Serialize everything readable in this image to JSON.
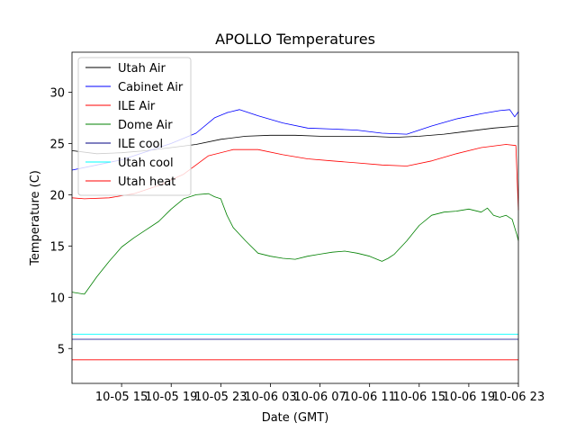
{
  "chart_data": {
    "type": "line",
    "title": "APOLLO Temperatures",
    "xlabel": "Date (GMT)",
    "ylabel": "Temperature (C)",
    "x_unit": "hours since 10-05 00:00 GMT",
    "xlim": [
      11.0,
      47.0
    ],
    "ylim": [
      1.6,
      33.9
    ],
    "x_ticks": [
      {
        "x": 15,
        "label": "10-05 15"
      },
      {
        "x": 19,
        "label": "10-05 19"
      },
      {
        "x": 23,
        "label": "10-05 23"
      },
      {
        "x": 27,
        "label": "10-06 03"
      },
      {
        "x": 31,
        "label": "10-06 07"
      },
      {
        "x": 35,
        "label": "10-06 11"
      },
      {
        "x": 39,
        "label": "10-06 15"
      },
      {
        "x": 43,
        "label": "10-06 19"
      },
      {
        "x": 47,
        "label": "10-06 23"
      }
    ],
    "y_ticks": [
      5,
      10,
      15,
      20,
      25,
      30
    ],
    "legend_position": "top-left",
    "series": [
      {
        "name": "Utah Air",
        "color": "#000000",
        "x": [
          11.0,
          13,
          15,
          17,
          19,
          21,
          23,
          25,
          27,
          29,
          31,
          33,
          35,
          37,
          39,
          41,
          43,
          45,
          47.0
        ],
        "y": [
          24.3,
          24.0,
          24.1,
          24.3,
          24.6,
          24.9,
          25.4,
          25.7,
          25.8,
          25.8,
          25.7,
          25.7,
          25.7,
          25.6,
          25.7,
          25.9,
          26.2,
          26.5,
          26.7
        ]
      },
      {
        "name": "Cabinet Air",
        "color": "#0000ff",
        "x": [
          11.0,
          13,
          15,
          17,
          19,
          21,
          22.5,
          23.5,
          24.5,
          26,
          28,
          30,
          32,
          34,
          36,
          38,
          40,
          42,
          44,
          45.5,
          46.3,
          46.7,
          47.0
        ],
        "y": [
          22.4,
          22.9,
          23.4,
          24.2,
          25.0,
          26.0,
          27.5,
          28.0,
          28.3,
          27.7,
          27.0,
          26.5,
          26.4,
          26.3,
          26.0,
          25.9,
          26.7,
          27.4,
          27.9,
          28.2,
          28.3,
          27.6,
          28.1
        ]
      },
      {
        "name": "ILE Air",
        "color": "#ff0000",
        "x": [
          11.0,
          12,
          14,
          16,
          18,
          20,
          22,
          24,
          26,
          28,
          30,
          32,
          34,
          36,
          38,
          40,
          42,
          44,
          46,
          46.8,
          46.95,
          47.0
        ],
        "y": [
          19.7,
          19.6,
          19.7,
          20.1,
          20.9,
          22.0,
          23.8,
          24.4,
          24.4,
          23.9,
          23.5,
          23.3,
          23.1,
          22.9,
          22.8,
          23.3,
          24.0,
          24.6,
          24.9,
          24.8,
          20.0,
          18.5
        ]
      },
      {
        "name": "Dome Air",
        "color": "#008000",
        "x": [
          11.0,
          12,
          13,
          14,
          15,
          16,
          17,
          18,
          19,
          20,
          21,
          22,
          22.5,
          23,
          23.5,
          24,
          25,
          26,
          27,
          28,
          29,
          30,
          31,
          32,
          33,
          34,
          35,
          36,
          36.5,
          37,
          38,
          39,
          40,
          41,
          42,
          43,
          44,
          44.5,
          45,
          45.5,
          46,
          46.5,
          46.9,
          47.0
        ],
        "y": [
          10.5,
          10.3,
          12.0,
          13.5,
          14.9,
          15.8,
          16.6,
          17.4,
          18.6,
          19.6,
          20.0,
          20.1,
          19.8,
          19.6,
          18.0,
          16.8,
          15.5,
          14.3,
          14.0,
          13.8,
          13.7,
          14.0,
          14.2,
          14.4,
          14.5,
          14.3,
          14.0,
          13.5,
          13.8,
          14.2,
          15.5,
          17.0,
          18.0,
          18.3,
          18.4,
          18.6,
          18.3,
          18.7,
          18.0,
          17.8,
          18.0,
          17.6,
          16.0,
          15.5
        ]
      },
      {
        "name": "ILE cool",
        "color": "#000080",
        "x": [
          11.0,
          47.0
        ],
        "y": [
          5.9,
          5.9
        ]
      },
      {
        "name": "Utah cool",
        "color": "#00ffff",
        "x": [
          11.0,
          47.0
        ],
        "y": [
          6.4,
          6.4
        ]
      },
      {
        "name": "Utah heat",
        "color": "#ff0000",
        "x": [
          11.0,
          47.0
        ],
        "y": [
          3.9,
          3.9
        ]
      }
    ]
  }
}
